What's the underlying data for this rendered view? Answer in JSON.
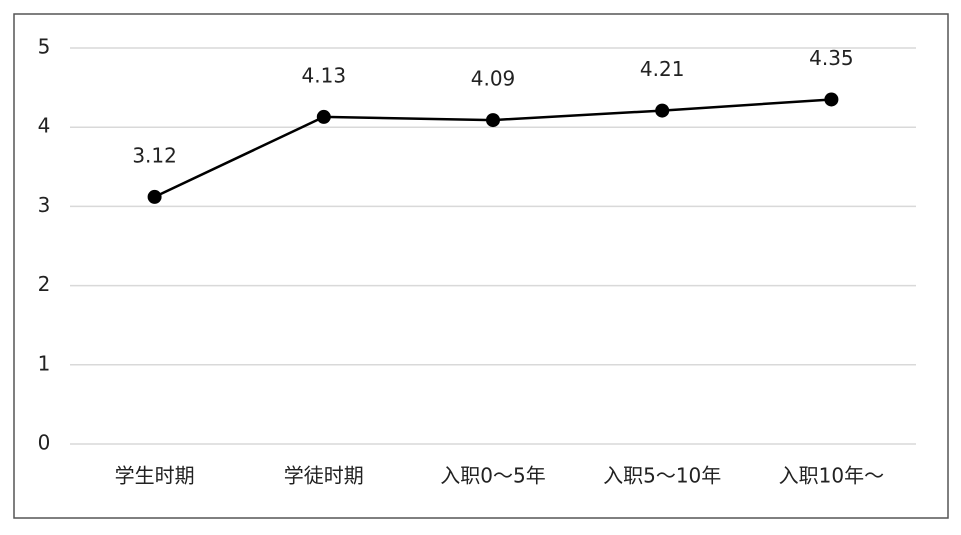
{
  "chart_data": {
    "type": "line",
    "categories": [
      "学生时期",
      "学徒时期",
      "入职0～5年",
      "入职5～10年",
      "入职10年～"
    ],
    "values": [
      3.12,
      4.13,
      4.09,
      4.21,
      4.35
    ],
    "color": "#000000",
    "ylim": [
      0,
      5
    ],
    "yticks": [
      0,
      1,
      2,
      3,
      4,
      5
    ],
    "grid": true
  }
}
